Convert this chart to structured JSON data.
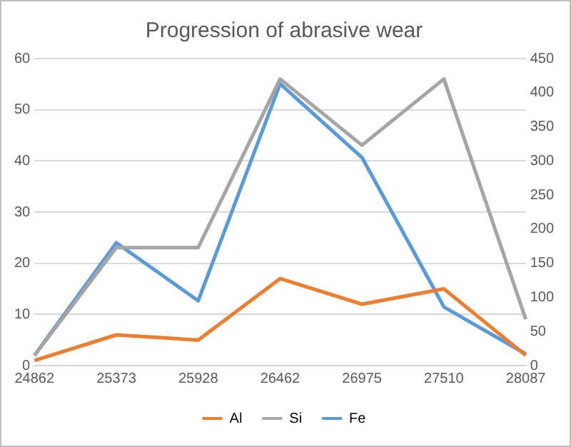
{
  "chart_data": {
    "type": "line",
    "title": "Progression of abrasive wear",
    "categories": [
      "24862",
      "25373",
      "25928",
      "26462",
      "26975",
      "27510",
      "28087"
    ],
    "series": [
      {
        "name": "Al",
        "color": "#ed7d31",
        "values": [
          1,
          6,
          5,
          17,
          12,
          15,
          2
        ]
      },
      {
        "name": "Si",
        "color": "#a5a5a5",
        "axis": "y2",
        "values": [
          15,
          173,
          173,
          420,
          323,
          420,
          68
        ]
      },
      {
        "name": "Fe",
        "color": "#5b9bd5",
        "axis": "y2",
        "values": [
          15,
          180,
          95,
          413,
          305,
          86,
          17
        ]
      }
    ],
    "ylim": [
      0,
      60
    ],
    "yticks": [
      0,
      10,
      20,
      30,
      40,
      50,
      60
    ],
    "y2lim": [
      0,
      450
    ],
    "y2ticks": [
      0,
      50,
      100,
      150,
      200,
      250,
      300,
      350,
      400,
      450
    ],
    "grid": "y",
    "legend": "bottom",
    "marker": "none",
    "line_style": "solid"
  }
}
